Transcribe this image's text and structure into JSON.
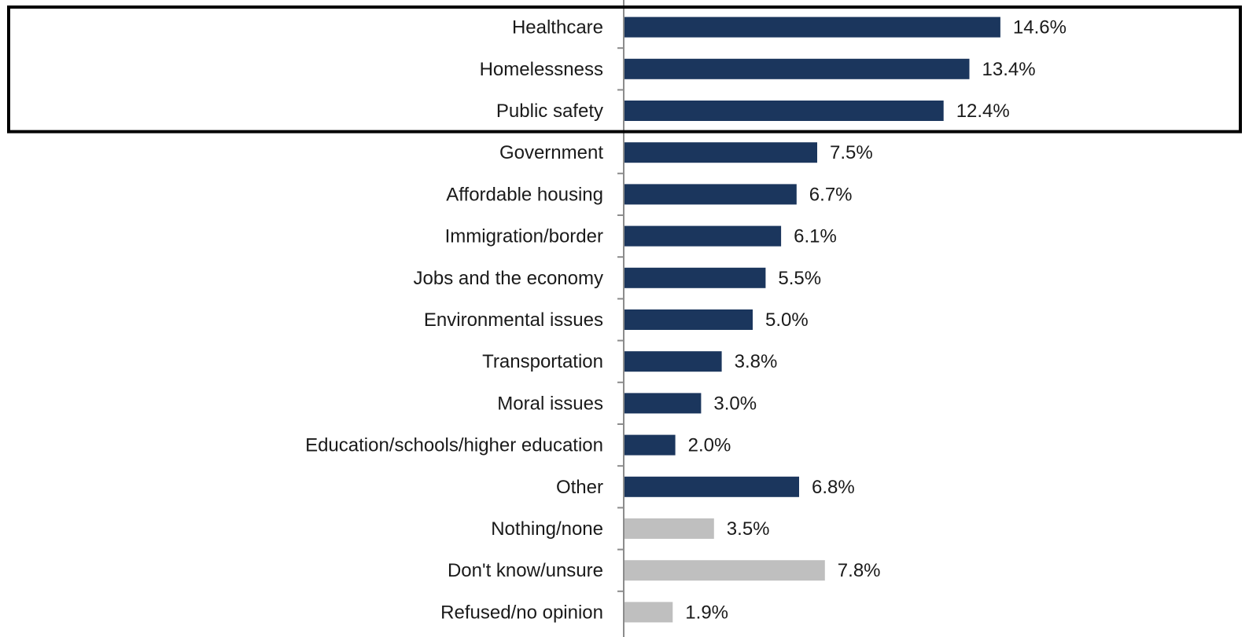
{
  "chart_data": {
    "type": "bar",
    "orientation": "horizontal",
    "categories": [
      "Healthcare",
      "Homelessness",
      "Public safety",
      "Government",
      "Affordable housing",
      "Immigration/border",
      "Jobs and the economy",
      "Environmental issues",
      "Transportation",
      "Moral issues",
      "Education/schools/higher education",
      "Other",
      "Nothing/none",
      "Don't know/unsure",
      "Refused/no opinion"
    ],
    "values": [
      14.6,
      13.4,
      12.4,
      7.5,
      6.7,
      6.1,
      5.5,
      5.0,
      3.8,
      3.0,
      2.0,
      6.8,
      3.5,
      7.8,
      1.9
    ],
    "value_labels": [
      "14.6%",
      "13.4%",
      "12.4%",
      "7.5%",
      "6.7%",
      "6.1%",
      "5.5%",
      "5.0%",
      "3.8%",
      "3.0%",
      "2.0%",
      "6.8%",
      "3.5%",
      "7.8%",
      "1.9%"
    ],
    "bar_colors": [
      "#1b365d",
      "#1b365d",
      "#1b365d",
      "#1b365d",
      "#1b365d",
      "#1b365d",
      "#1b365d",
      "#1b365d",
      "#1b365d",
      "#1b365d",
      "#1b365d",
      "#1b365d",
      "#bfbfbf",
      "#bfbfbf",
      "#bfbfbf"
    ],
    "highlighted_categories": [
      "Healthcare",
      "Homelessness",
      "Public safety"
    ],
    "xlim": [
      0,
      16
    ],
    "title": "",
    "xlabel": "",
    "ylabel": "",
    "grid": false,
    "legend": "none"
  }
}
